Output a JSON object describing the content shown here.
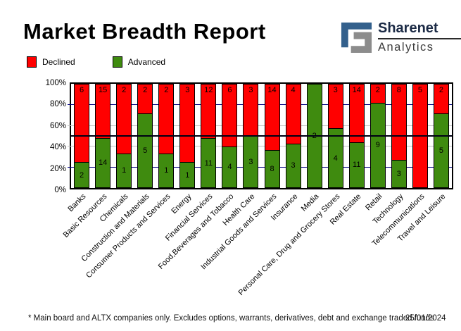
{
  "title": "Market Breadth Report",
  "logo": {
    "line1": "Sharenet",
    "line2": "Analytics",
    "glyph": "sharenet-logo",
    "blue": "#33608c",
    "gray": "#8c8c8c"
  },
  "legend": [
    {
      "label": "Declined",
      "color": "#ff0000"
    },
    {
      "label": "Advanced",
      "color": "#3f8b0f"
    }
  ],
  "footer": {
    "note": "* Main board and ALTX companies only. Excludes options, warrants, derivatives, debt and exchange traded funds",
    "date": "25/01/2024"
  },
  "chart_data": {
    "type": "bar",
    "stacked": true,
    "normalized": "percent",
    "title": "Market Breadth Report",
    "xlabel": "",
    "ylabel": "",
    "ylim": [
      0,
      100
    ],
    "yticks_top_to_bottom": [
      "100%",
      "80%",
      "60%",
      "40%",
      "20%",
      "0%"
    ],
    "categories": [
      "Banks",
      "Basic Resources",
      "Chemicals",
      "Construction and Materials",
      "Consumer Products and Services",
      "Energy",
      "Financial Services",
      "Food,Beverages and Tobacco",
      "Health Care",
      "Industrial Goods and Services",
      "Insurance",
      "Media",
      "Personal Care, Drug and Grocery Stores",
      "Real Estate",
      "Retail",
      "Technology",
      "Telecommunications",
      "Travel and Leisure"
    ],
    "series": [
      {
        "name": "Declined",
        "color": "#ff0000",
        "values": [
          6,
          15,
          2,
          2,
          2,
          3,
          12,
          6,
          3,
          14,
          4,
          0,
          3,
          14,
          2,
          8,
          5,
          2
        ]
      },
      {
        "name": "Advanced",
        "color": "#3f8b0f",
        "values": [
          2,
          14,
          1,
          5,
          1,
          1,
          11,
          4,
          3,
          8,
          3,
          2,
          4,
          11,
          9,
          3,
          0,
          5
        ]
      }
    ],
    "gridlines": [
      {
        "value": 80,
        "color": "#000080"
      },
      {
        "value": 60,
        "color": "#c0c0c0"
      },
      {
        "value": 40,
        "color": "#c0c0c0"
      },
      {
        "value": 20,
        "color": "#000080"
      }
    ],
    "midline_value": 50,
    "legend_position": "top-left"
  }
}
